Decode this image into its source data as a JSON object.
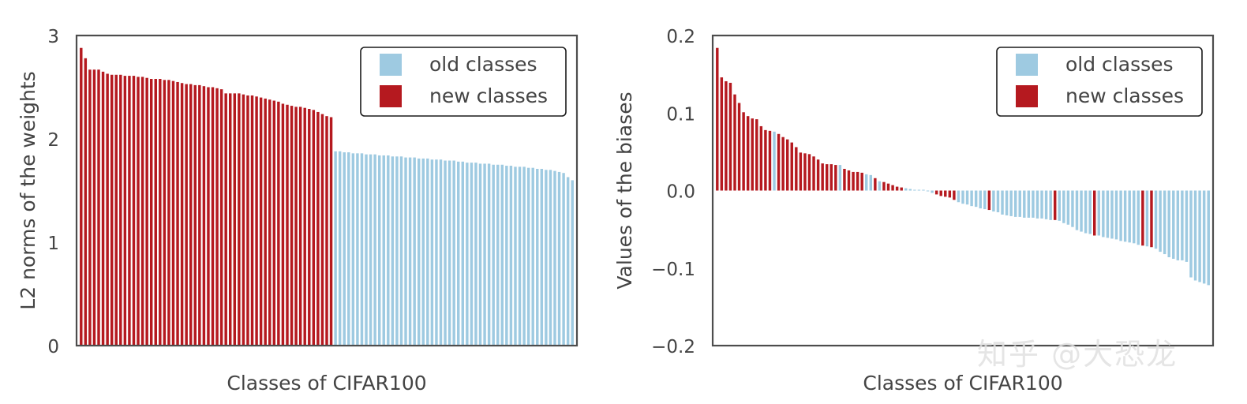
{
  "chart_data": [
    {
      "type": "bar",
      "xlabel": "Classes of CIFAR100",
      "ylabel": "L2 norms of the weights",
      "ylim": [
        0,
        3
      ],
      "yticks": [
        0,
        1,
        2,
        3
      ],
      "ytick_labels": [
        "0",
        "1",
        "2",
        "3"
      ],
      "grid": false,
      "legend_position": "top-right",
      "legend": [
        {
          "label": "old classes",
          "color": "#9ecae1"
        },
        {
          "label": "new classes",
          "color": "#b5191f"
        }
      ],
      "values": [
        2.88,
        2.78,
        2.67,
        2.67,
        2.67,
        2.65,
        2.63,
        2.62,
        2.62,
        2.62,
        2.61,
        2.61,
        2.61,
        2.6,
        2.6,
        2.59,
        2.58,
        2.58,
        2.58,
        2.57,
        2.57,
        2.56,
        2.55,
        2.54,
        2.53,
        2.53,
        2.52,
        2.52,
        2.51,
        2.5,
        2.5,
        2.49,
        2.48,
        2.44,
        2.44,
        2.44,
        2.44,
        2.43,
        2.42,
        2.42,
        2.41,
        2.4,
        2.39,
        2.38,
        2.37,
        2.36,
        2.34,
        2.33,
        2.32,
        2.31,
        2.31,
        2.3,
        2.29,
        2.28,
        2.26,
        2.24,
        2.22,
        2.21,
        1.88,
        1.88,
        1.87,
        1.87,
        1.86,
        1.86,
        1.86,
        1.85,
        1.85,
        1.85,
        1.84,
        1.84,
        1.84,
        1.83,
        1.83,
        1.83,
        1.82,
        1.82,
        1.82,
        1.81,
        1.81,
        1.81,
        1.8,
        1.8,
        1.8,
        1.79,
        1.79,
        1.79,
        1.78,
        1.78,
        1.77,
        1.77,
        1.77,
        1.76,
        1.76,
        1.76,
        1.75,
        1.75,
        1.75,
        1.74,
        1.74,
        1.73,
        1.73,
        1.73,
        1.72,
        1.72,
        1.71,
        1.71,
        1.7,
        1.7,
        1.69,
        1.68,
        1.67,
        1.63,
        1.6
      ],
      "class_groups": [
        "new",
        "new",
        "new",
        "new",
        "new",
        "new",
        "new",
        "new",
        "new",
        "new",
        "new",
        "new",
        "new",
        "new",
        "new",
        "new",
        "new",
        "new",
        "new",
        "new",
        "new",
        "new",
        "new",
        "new",
        "new",
        "new",
        "new",
        "new",
        "new",
        "new",
        "new",
        "new",
        "new",
        "new",
        "new",
        "new",
        "new",
        "new",
        "new",
        "new",
        "new",
        "new",
        "new",
        "new",
        "new",
        "new",
        "new",
        "new",
        "new",
        "new",
        "new",
        "new",
        "new",
        "new",
        "new",
        "new",
        "new",
        "new",
        "old",
        "old",
        "old",
        "old",
        "old",
        "old",
        "old",
        "old",
        "old",
        "old",
        "old",
        "old",
        "old",
        "old",
        "old",
        "old",
        "old",
        "old",
        "old",
        "old",
        "old",
        "old",
        "old",
        "old",
        "old",
        "old",
        "old",
        "old",
        "old",
        "old",
        "old",
        "old",
        "old",
        "old",
        "old",
        "old",
        "old",
        "old",
        "old",
        "old",
        "old",
        "old",
        "old",
        "old",
        "old",
        "old",
        "old",
        "old",
        "old",
        "old",
        "old",
        "old",
        "old",
        "old",
        "old"
      ]
    },
    {
      "type": "bar",
      "xlabel": "Classes of CIFAR100",
      "ylabel": "Values of the biases",
      "ylim": [
        -0.2,
        0.2
      ],
      "yticks": [
        -0.2,
        -0.1,
        0.0,
        0.1,
        0.2
      ],
      "ytick_labels": [
        "−0.2",
        "−0.1",
        "0.0",
        "0.1",
        "0.2"
      ],
      "grid": false,
      "legend_position": "top-right",
      "legend": [
        {
          "label": "old classes",
          "color": "#9ecae1"
        },
        {
          "label": "new classes",
          "color": "#b5191f"
        }
      ],
      "values": [
        0.184,
        0.146,
        0.141,
        0.139,
        0.124,
        0.113,
        0.101,
        0.096,
        0.093,
        0.092,
        0.083,
        0.078,
        0.077,
        0.076,
        0.073,
        0.069,
        0.066,
        0.062,
        0.056,
        0.049,
        0.048,
        0.047,
        0.044,
        0.04,
        0.035,
        0.034,
        0.034,
        0.033,
        0.033,
        0.028,
        0.026,
        0.024,
        0.024,
        0.023,
        0.021,
        0.02,
        0.016,
        0.012,
        0.011,
        0.009,
        0.007,
        0.005,
        0.004,
        0.003,
        0.002,
        0.001,
        0.001,
        0.001,
        -0.001,
        -0.003,
        -0.005,
        -0.007,
        -0.008,
        -0.009,
        -0.012,
        -0.015,
        -0.017,
        -0.018,
        -0.02,
        -0.021,
        -0.023,
        -0.024,
        -0.025,
        -0.027,
        -0.028,
        -0.031,
        -0.032,
        -0.033,
        -0.034,
        -0.034,
        -0.035,
        -0.035,
        -0.035,
        -0.036,
        -0.036,
        -0.037,
        -0.038,
        -0.038,
        -0.039,
        -0.042,
        -0.044,
        -0.047,
        -0.051,
        -0.053,
        -0.055,
        -0.056,
        -0.058,
        -0.058,
        -0.06,
        -0.061,
        -0.062,
        -0.063,
        -0.065,
        -0.066,
        -0.067,
        -0.068,
        -0.07,
        -0.071,
        -0.072,
        -0.073,
        -0.075,
        -0.079,
        -0.082,
        -0.086,
        -0.088,
        -0.09,
        -0.09,
        -0.092,
        -0.112,
        -0.116,
        -0.118,
        -0.12,
        -0.122
      ],
      "class_groups": [
        "new",
        "new",
        "new",
        "new",
        "new",
        "new",
        "new",
        "new",
        "new",
        "new",
        "new",
        "new",
        "new",
        "old",
        "new",
        "new",
        "new",
        "new",
        "new",
        "new",
        "new",
        "new",
        "new",
        "new",
        "new",
        "new",
        "new",
        "new",
        "old",
        "new",
        "new",
        "new",
        "new",
        "new",
        "old",
        "old",
        "new",
        "old",
        "new",
        "new",
        "new",
        "new",
        "new",
        "old",
        "old",
        "old",
        "old",
        "old",
        "old",
        "old",
        "new",
        "new",
        "new",
        "new",
        "new",
        "old",
        "old",
        "old",
        "old",
        "old",
        "old",
        "old",
        "new",
        "old",
        "old",
        "old",
        "old",
        "old",
        "old",
        "old",
        "old",
        "old",
        "old",
        "old",
        "old",
        "old",
        "old",
        "new",
        "old",
        "old",
        "old",
        "old",
        "old",
        "old",
        "old",
        "old",
        "new",
        "old",
        "old",
        "old",
        "old",
        "old",
        "old",
        "old",
        "old",
        "old",
        "old",
        "new",
        "old",
        "new",
        "old",
        "old",
        "old",
        "old",
        "old",
        "old",
        "old",
        "old",
        "old",
        "old",
        "old",
        "old",
        "old"
      ]
    }
  ],
  "watermark": "知乎 @大恐龙"
}
